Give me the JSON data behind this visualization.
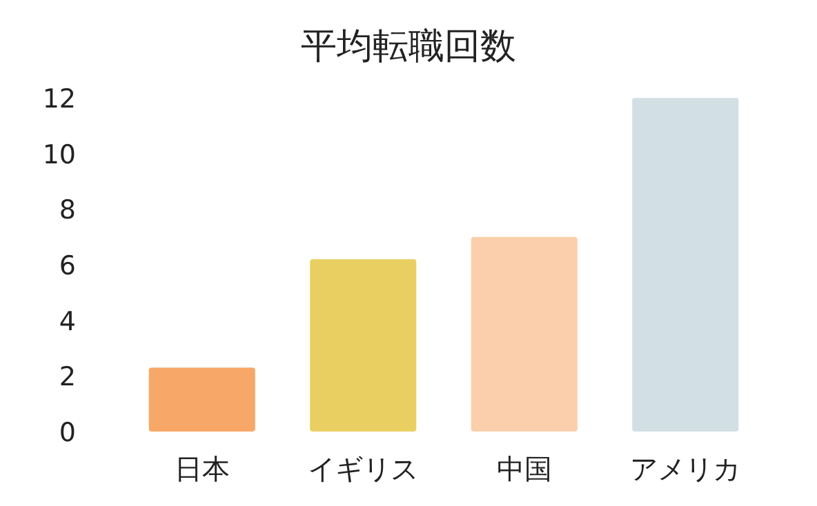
{
  "chart_data": {
    "type": "bar",
    "title": "平均転職回数",
    "categories": [
      "日本",
      "イギリス",
      "中国",
      "アメリカ"
    ],
    "values": [
      2.3,
      6.2,
      7.0,
      12.0
    ],
    "colors": [
      "#f7a869",
      "#e9cf62",
      "#fbcfab",
      "#d2e0e5"
    ],
    "ylim": [
      0,
      12
    ],
    "yticks": [
      0,
      2,
      4,
      6,
      8,
      10,
      12
    ],
    "grid": false
  }
}
